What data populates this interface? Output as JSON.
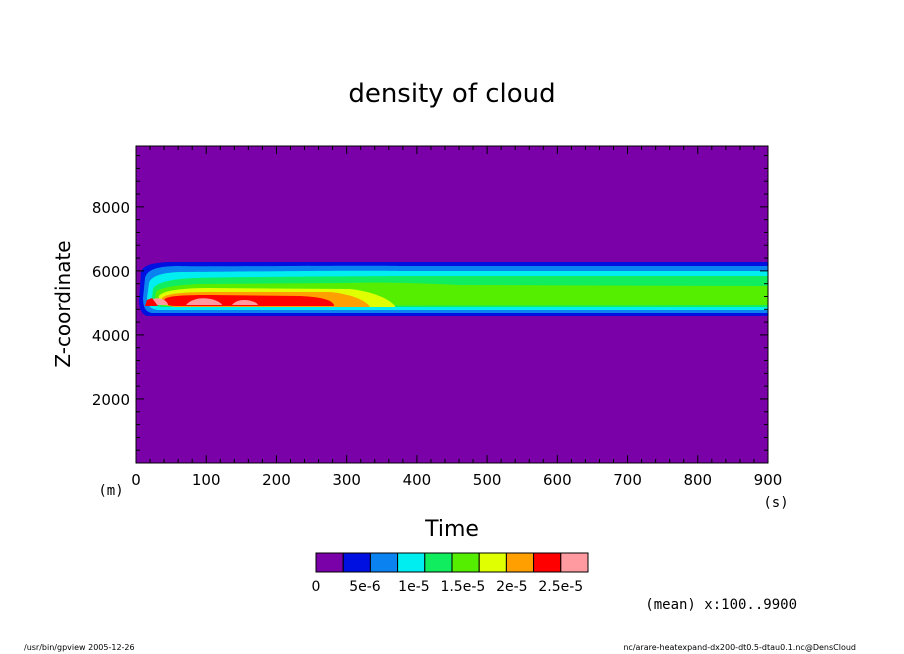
{
  "chart_data": {
    "type": "heatmap",
    "title": "density of cloud",
    "xlabel": "Time",
    "ylabel": "Z-coordinate",
    "xunit": "(s)",
    "yunit": "(m)",
    "xlim": [
      0,
      900
    ],
    "ylim": [
      0,
      9900
    ],
    "xticks": [
      "0",
      "100",
      "200",
      "300",
      "400",
      "500",
      "600",
      "700",
      "800",
      "900"
    ],
    "yticks": [
      "2000",
      "4000",
      "6000",
      "8000"
    ],
    "colorbar": {
      "colors": [
        "#7a00a8",
        "#0010e0",
        "#0a82f0",
        "#00eef0",
        "#10ee60",
        "#55ee00",
        "#e0ff00",
        "#ffa000",
        "#ff0000",
        "#ff9aa0"
      ],
      "labels": [
        "0",
        "5e-6",
        "1e-5",
        "1.5e-5",
        "2e-5",
        "2.5e-5"
      ]
    },
    "annotation": "(mean) x:100..9900"
  },
  "footer": {
    "left": "/usr/bin/gpview   2005-12-26",
    "right": "nc/arare-heatexpand-dx200-dt0.5-dtau0.1.nc@DensCloud"
  }
}
